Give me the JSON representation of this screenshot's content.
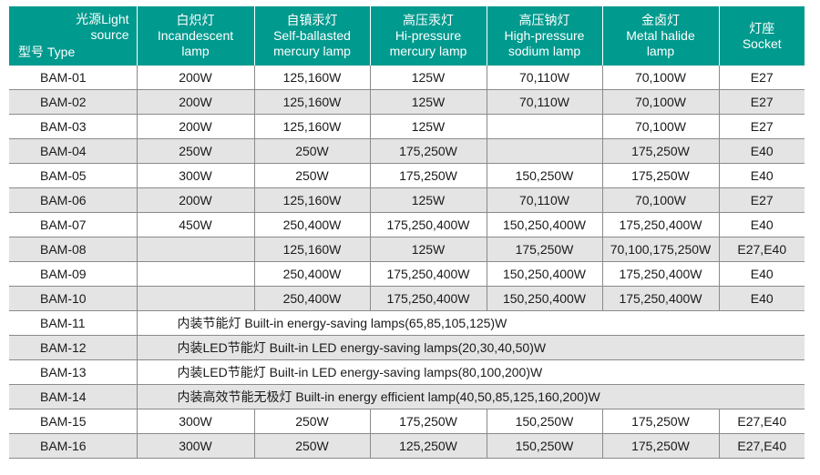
{
  "header": {
    "corner_source": "光源Light",
    "corner_source2": "source",
    "corner_type": "型号 Type",
    "columns": [
      {
        "cn": "白炽灯",
        "en1": "Incandescent",
        "en2": "lamp"
      },
      {
        "cn": "自镇汞灯",
        "en1": "Self-ballasted",
        "en2": "mercury lamp"
      },
      {
        "cn": "高压汞灯",
        "en1": "Hi-pressure",
        "en2": "mercury lamp"
      },
      {
        "cn": "高压钠灯",
        "en1": "High-pressure",
        "en2": "sodium lamp"
      },
      {
        "cn": "金卤灯",
        "en1": "Metal halide",
        "en2": "lamp"
      },
      {
        "cn": "灯座",
        "en1": "Socket",
        "en2": ""
      }
    ]
  },
  "rows": [
    {
      "model": "BAM-01",
      "cells": [
        "200W",
        "125,160W",
        "125W",
        "70,110W",
        "70,100W",
        "E27"
      ]
    },
    {
      "model": "BAM-02",
      "cells": [
        "200W",
        "125,160W",
        "125W",
        "70,110W",
        "70,100W",
        "E27"
      ]
    },
    {
      "model": "BAM-03",
      "cells": [
        "200W",
        "125,160W",
        "125W",
        "",
        "70,100W",
        "E27"
      ]
    },
    {
      "model": "BAM-04",
      "cells": [
        "250W",
        "250W",
        "175,250W",
        "",
        "175,250W",
        "E40"
      ]
    },
    {
      "model": "BAM-05",
      "cells": [
        "300W",
        "250W",
        "175,250W",
        "150,250W",
        "175,250W",
        "E40"
      ]
    },
    {
      "model": "BAM-06",
      "cells": [
        "200W",
        "125,160W",
        "125W",
        "70,110W",
        "70,100W",
        "E27"
      ]
    },
    {
      "model": "BAM-07",
      "cells": [
        "450W",
        "250,400W",
        "175,250,400W",
        "150,250,400W",
        "175,250,400W",
        "E40"
      ]
    },
    {
      "model": "BAM-08",
      "cells": [
        "",
        "125,160W",
        "125W",
        "175,250W",
        "70,100,175,250W",
        "E27,E40"
      ]
    },
    {
      "model": "BAM-09",
      "cells": [
        "",
        "250,400W",
        "175,250,400W",
        "150,250,400W",
        "175,250,400W",
        "E40"
      ]
    },
    {
      "model": "BAM-10",
      "cells": [
        "",
        "250,400W",
        "175,250,400W",
        "150,250,400W",
        "175,250,400W",
        "E40"
      ]
    },
    {
      "model": "BAM-11",
      "span": "内装节能灯 Built-in energy-saving lamps(65,85,105,125)W"
    },
    {
      "model": "BAM-12",
      "span": "内装LED节能灯 Built-in LED energy-saving lamps(20,30,40,50)W"
    },
    {
      "model": "BAM-13",
      "span": "内装LED节能灯 Built-in LED energy-saving lamps(80,100,200)W"
    },
    {
      "model": "BAM-14",
      "span": "内装高效节能无极灯 Built-in energy efficient lamp(40,50,85,125,160,200)W"
    },
    {
      "model": "BAM-15",
      "cells": [
        "300W",
        "250W",
        "175,250W",
        "150,250W",
        "175,250W",
        "E27,E40"
      ]
    },
    {
      "model": "BAM-16",
      "cells": [
        "300W",
        "250W",
        "125,250W",
        "150,250W",
        "175,250W",
        "E27,E40"
      ]
    }
  ]
}
